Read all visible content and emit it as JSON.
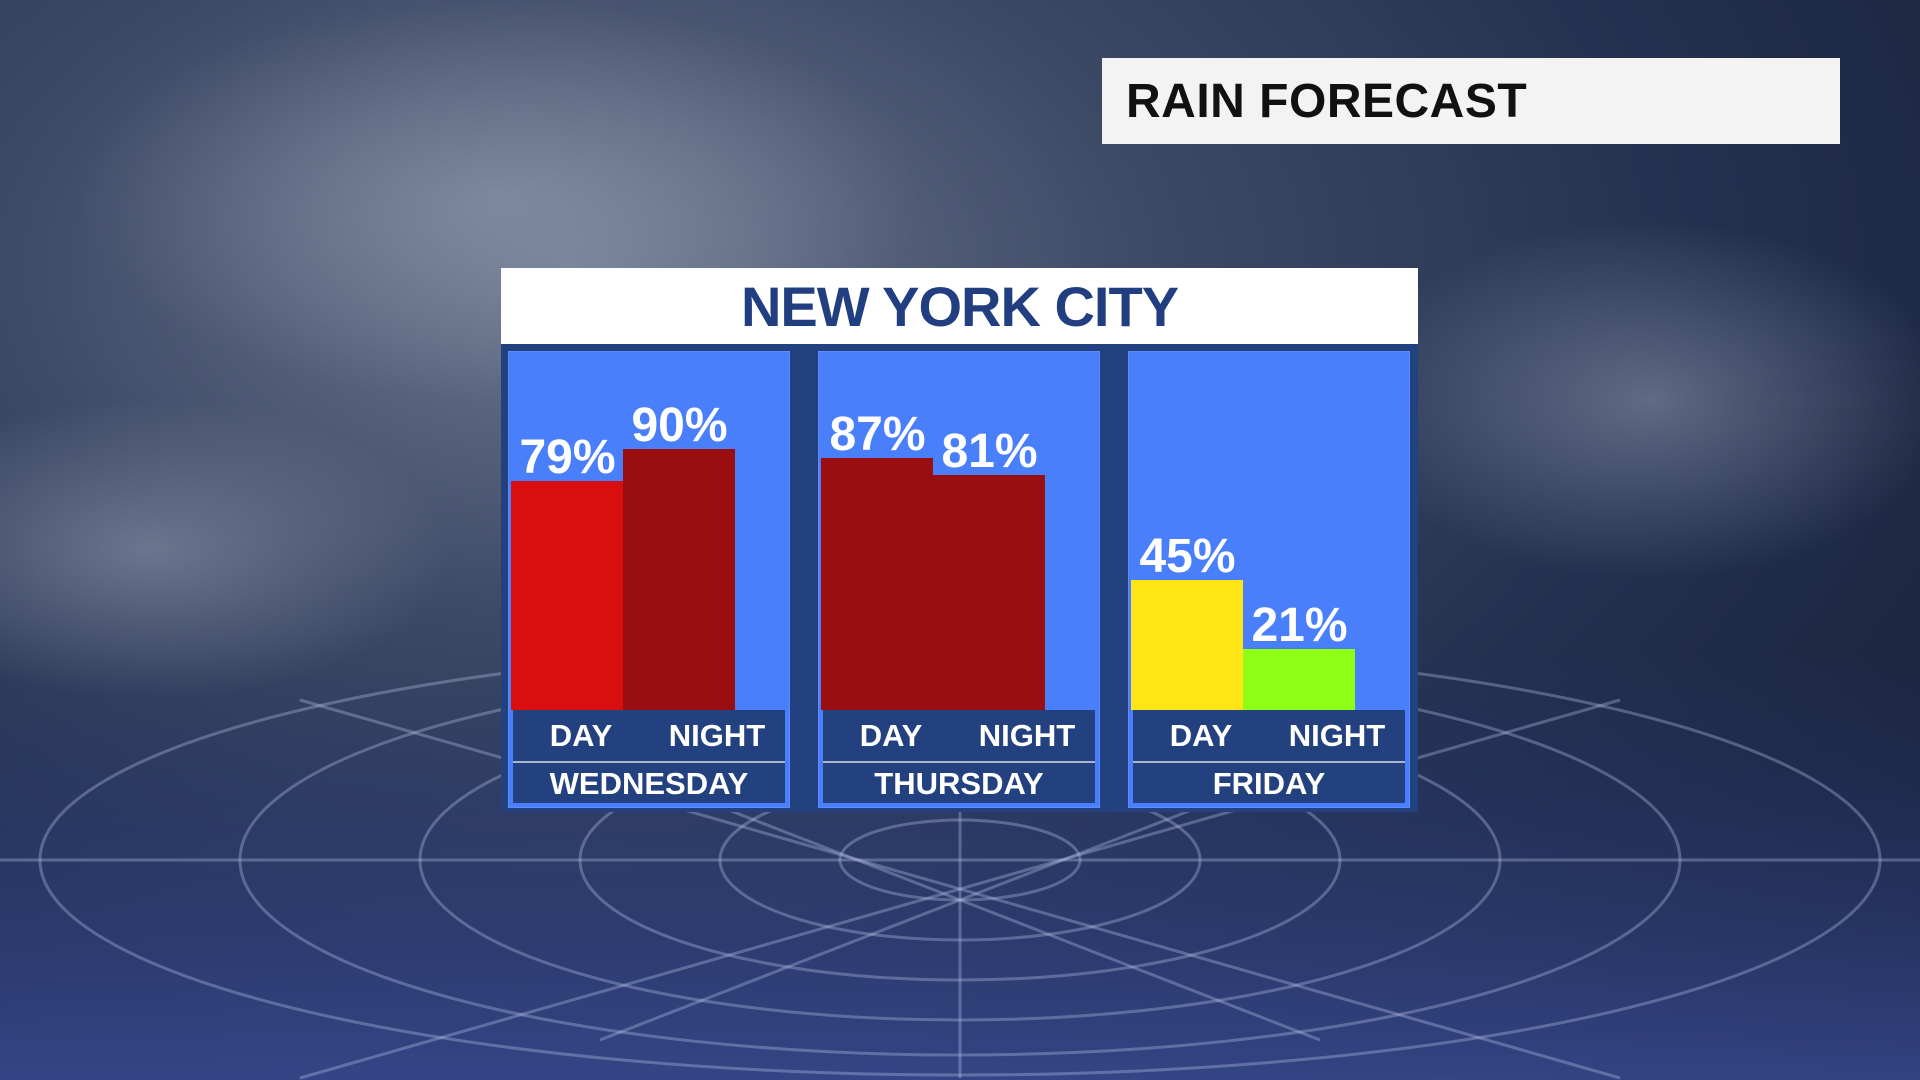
{
  "header": {
    "title": "RAIN FORECAST"
  },
  "chart_data": {
    "type": "bar",
    "title": "NEW YORK CITY",
    "ylim": [
      0,
      100
    ],
    "unit": "%",
    "groups": [
      {
        "day": "WEDNESDAY",
        "bars": [
          {
            "label": "DAY",
            "value": 79,
            "display": "79%",
            "color": "#d90e0e"
          },
          {
            "label": "NIGHT",
            "value": 90,
            "display": "90%",
            "color": "#9a0e12"
          }
        ]
      },
      {
        "day": "THURSDAY",
        "bars": [
          {
            "label": "DAY",
            "value": 87,
            "display": "87%",
            "color": "#9a0e12"
          },
          {
            "label": "NIGHT",
            "value": 81,
            "display": "81%",
            "color": "#9a0e12"
          }
        ]
      },
      {
        "day": "FRIDAY",
        "bars": [
          {
            "label": "DAY",
            "value": 45,
            "display": "45%",
            "color": "#ffe516"
          },
          {
            "label": "NIGHT",
            "value": 21,
            "display": "21%",
            "color": "#8cff14"
          }
        ]
      }
    ]
  }
}
